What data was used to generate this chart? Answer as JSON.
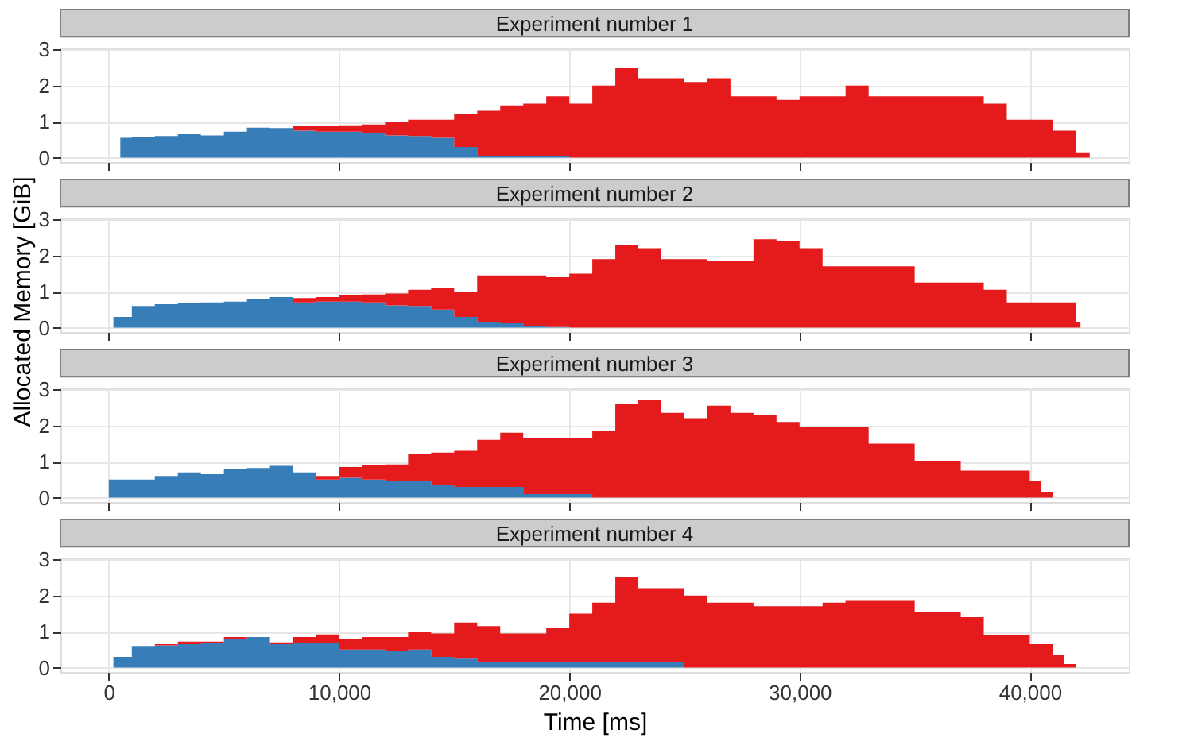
{
  "chart_data": [
    {
      "type": "area",
      "stacked": true,
      "title": "Experiment number 1",
      "tick_labels": "y",
      "grid": true,
      "legend": false,
      "x": [
        500,
        1000,
        2000,
        3000,
        4000,
        5000,
        6000,
        7000,
        8000,
        9000,
        10000,
        11000,
        12000,
        13000,
        14000,
        15000,
        16000,
        17000,
        18000,
        19000,
        20000,
        21000,
        22000,
        23000,
        24000,
        25000,
        26000,
        27000,
        28000,
        29000,
        30000,
        31000,
        32000,
        33000,
        34000,
        35000,
        36000,
        37000,
        38000,
        39000,
        40000,
        41000,
        42000,
        42600
      ],
      "series": [
        {
          "color": "#377eb8",
          "values": [
            0.55,
            0.58,
            0.6,
            0.65,
            0.62,
            0.72,
            0.83,
            0.82,
            0.75,
            0.72,
            0.72,
            0.68,
            0.62,
            0.6,
            0.55,
            0.3,
            0.05,
            0.05,
            0.05,
            0.05,
            0,
            0,
            0,
            0,
            0,
            0,
            0,
            0,
            0,
            0,
            0,
            0,
            0,
            0,
            0,
            0,
            0,
            0,
            0,
            0,
            0,
            0,
            0,
            0
          ]
        },
        {
          "color": "#e41a1c",
          "values": [
            0,
            0,
            0,
            0,
            0,
            0,
            0,
            0,
            0.13,
            0.16,
            0.18,
            0.24,
            0.36,
            0.45,
            0.5,
            0.9,
            1.25,
            1.4,
            1.45,
            1.65,
            1.5,
            2.0,
            2.5,
            2.2,
            2.2,
            2.1,
            2.2,
            1.7,
            1.7,
            1.6,
            1.7,
            1.7,
            2.0,
            1.7,
            1.7,
            1.7,
            1.7,
            1.7,
            1.5,
            1.05,
            1.05,
            0.75,
            0.15,
            0
          ]
        }
      ],
      "xlim": [
        -2100,
        44300
      ],
      "xticks": [
        {
          "value": 0,
          "label": null
        },
        {
          "value": 10000,
          "label": null
        },
        {
          "value": 20000,
          "label": null
        },
        {
          "value": 30000,
          "label": null
        },
        {
          "value": 40000,
          "label": null
        }
      ],
      "ylim": [
        -0.12,
        3.05
      ],
      "yticks": [
        0,
        1,
        2,
        3
      ]
    },
    {
      "type": "area",
      "stacked": true,
      "title": "Experiment number 2",
      "tick_labels": "y",
      "grid": true,
      "legend": false,
      "x": [
        200,
        1000,
        2000,
        3000,
        4000,
        5000,
        6000,
        7000,
        8000,
        9000,
        10000,
        11000,
        12000,
        13000,
        14000,
        15000,
        16000,
        17000,
        18000,
        19000,
        20000,
        21000,
        22000,
        23000,
        24000,
        25000,
        26000,
        27000,
        28000,
        29000,
        30000,
        31000,
        32000,
        33000,
        34000,
        35000,
        36000,
        37000,
        38000,
        39000,
        40000,
        41000,
        42000,
        42200
      ],
      "series": [
        {
          "color": "#377eb8",
          "values": [
            0.3,
            0.6,
            0.65,
            0.68,
            0.7,
            0.72,
            0.78,
            0.85,
            0.7,
            0.72,
            0.72,
            0.7,
            0.62,
            0.6,
            0.5,
            0.3,
            0.15,
            0.12,
            0.05,
            0.02,
            0,
            0,
            0,
            0,
            0,
            0,
            0,
            0,
            0,
            0,
            0,
            0,
            0,
            0,
            0,
            0,
            0,
            0,
            0,
            0,
            0,
            0,
            0,
            0
          ]
        },
        {
          "color": "#e41a1c",
          "values": [
            0,
            0,
            0,
            0,
            0,
            0,
            0,
            0,
            0.12,
            0.13,
            0.18,
            0.22,
            0.33,
            0.45,
            0.6,
            0.7,
            1.3,
            1.33,
            1.4,
            1.38,
            1.5,
            1.9,
            2.3,
            2.2,
            1.9,
            1.9,
            1.85,
            1.85,
            2.45,
            2.4,
            2.2,
            1.7,
            1.7,
            1.7,
            1.7,
            1.25,
            1.25,
            1.25,
            1.05,
            0.7,
            0.7,
            0.7,
            0.15,
            0
          ]
        }
      ],
      "xlim": [
        -2100,
        44300
      ],
      "xticks": [
        {
          "value": 0,
          "label": null
        },
        {
          "value": 10000,
          "label": null
        },
        {
          "value": 20000,
          "label": null
        },
        {
          "value": 30000,
          "label": null
        },
        {
          "value": 40000,
          "label": null
        }
      ],
      "ylim": [
        -0.12,
        3.05
      ],
      "yticks": [
        0,
        1,
        2,
        3
      ]
    },
    {
      "type": "area",
      "stacked": true,
      "title": "Experiment number 3",
      "ylabel": "Allocated Memory [GiB]",
      "tick_labels": "y",
      "grid": true,
      "legend": false,
      "x": [
        0,
        1000,
        2000,
        3000,
        4000,
        5000,
        6000,
        7000,
        8000,
        9000,
        10000,
        11000,
        12000,
        13000,
        14000,
        15000,
        16000,
        17000,
        18000,
        19000,
        20000,
        21000,
        22000,
        23000,
        24000,
        25000,
        26000,
        27000,
        28000,
        29000,
        30000,
        31000,
        32000,
        33000,
        34000,
        35000,
        36000,
        37000,
        38000,
        39000,
        40000,
        40500,
        41000
      ],
      "series": [
        {
          "color": "#377eb8",
          "values": [
            0.5,
            0.5,
            0.6,
            0.7,
            0.65,
            0.8,
            0.82,
            0.88,
            0.7,
            0.5,
            0.55,
            0.5,
            0.45,
            0.45,
            0.35,
            0.3,
            0.3,
            0.3,
            0.1,
            0.1,
            0.1,
            0,
            0,
            0,
            0,
            0,
            0,
            0,
            0,
            0,
            0,
            0,
            0,
            0,
            0,
            0,
            0,
            0,
            0,
            0,
            0,
            0,
            0
          ]
        },
        {
          "color": "#e41a1c",
          "values": [
            0,
            0,
            0,
            0,
            0,
            0,
            0,
            0,
            0,
            0.1,
            0.3,
            0.4,
            0.47,
            0.75,
            0.9,
            1.0,
            1.3,
            1.5,
            1.55,
            1.55,
            1.55,
            1.85,
            2.6,
            2.7,
            2.35,
            2.2,
            2.55,
            2.35,
            2.3,
            2.1,
            1.95,
            1.95,
            1.95,
            1.5,
            1.5,
            1.0,
            1.0,
            0.75,
            0.75,
            0.75,
            0.45,
            0.15,
            0
          ]
        }
      ],
      "xlim": [
        -2100,
        44300
      ],
      "xticks": [
        {
          "value": 0,
          "label": null
        },
        {
          "value": 10000,
          "label": null
        },
        {
          "value": 20000,
          "label": null
        },
        {
          "value": 30000,
          "label": null
        },
        {
          "value": 40000,
          "label": null
        }
      ],
      "ylim": [
        -0.12,
        3.05
      ],
      "yticks": [
        0,
        1,
        2,
        3
      ]
    },
    {
      "type": "area",
      "stacked": true,
      "title": "Experiment number 4",
      "xlabel": "Time [ms]",
      "grid": true,
      "legend": false,
      "x": [
        200,
        1000,
        2000,
        3000,
        4000,
        5000,
        6000,
        7000,
        8000,
        9000,
        10000,
        11000,
        12000,
        13000,
        14000,
        15000,
        16000,
        17000,
        18000,
        19000,
        20000,
        21000,
        22000,
        23000,
        24000,
        25000,
        26000,
        27000,
        28000,
        29000,
        30000,
        31000,
        32000,
        33000,
        34000,
        35000,
        36000,
        37000,
        38000,
        39000,
        40000,
        41000,
        41500,
        42000
      ],
      "series": [
        {
          "color": "#377eb8",
          "values": [
            0.3,
            0.6,
            0.62,
            0.65,
            0.68,
            0.8,
            0.85,
            0.65,
            0.68,
            0.68,
            0.5,
            0.5,
            0.45,
            0.5,
            0.3,
            0.25,
            0.15,
            0.15,
            0.15,
            0.15,
            0.15,
            0.15,
            0.15,
            0.15,
            0.15,
            0,
            0,
            0,
            0,
            0,
            0,
            0,
            0,
            0,
            0,
            0,
            0,
            0,
            0,
            0,
            0,
            0,
            0,
            0
          ]
        },
        {
          "color": "#e41a1c",
          "values": [
            0,
            0,
            0.03,
            0.07,
            0.04,
            0.05,
            0,
            0.05,
            0.17,
            0.24,
            0.3,
            0.35,
            0.4,
            0.48,
            0.65,
            1.0,
            1.0,
            0.8,
            0.8,
            0.95,
            1.35,
            1.65,
            2.35,
            2.05,
            2.05,
            2.0,
            1.8,
            1.8,
            1.7,
            1.7,
            1.7,
            1.8,
            1.85,
            1.85,
            1.85,
            1.55,
            1.55,
            1.4,
            0.9,
            0.9,
            0.65,
            0.35,
            0.1,
            0
          ]
        }
      ],
      "xlim": [
        -2100,
        44300
      ],
      "xticks": [
        {
          "value": 0,
          "label": "0"
        },
        {
          "value": 10000,
          "label": "10,000"
        },
        {
          "value": 20000,
          "label": "20,000"
        },
        {
          "value": 30000,
          "label": "30,000"
        },
        {
          "value": 40000,
          "label": "40,000"
        }
      ],
      "ylim": [
        -0.12,
        3.05
      ],
      "yticks": [
        0,
        1,
        2,
        3
      ]
    }
  ]
}
